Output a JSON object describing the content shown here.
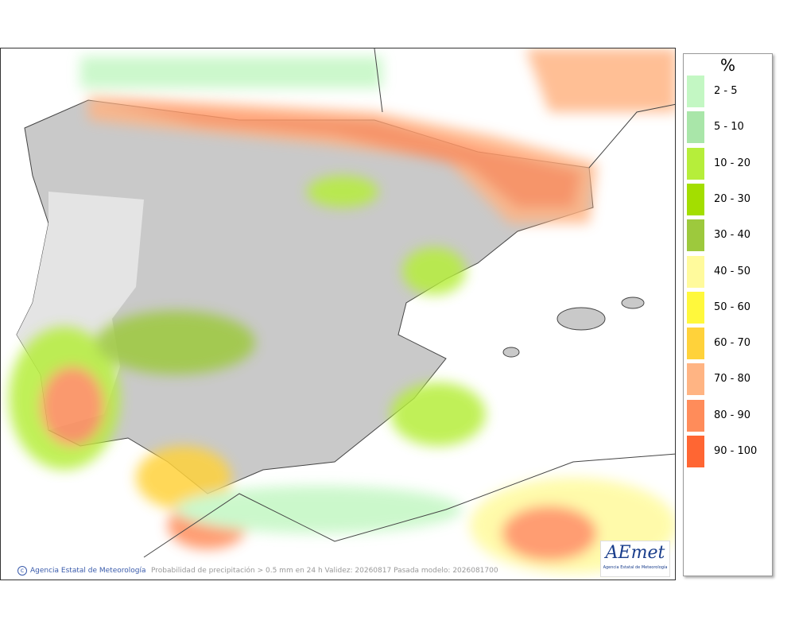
{
  "legend": {
    "title": "%",
    "items": [
      {
        "label": "2 - 5",
        "color": "#c3f7c3"
      },
      {
        "label": "5 - 10",
        "color": "#a9e6a9"
      },
      {
        "label": "10 - 20",
        "color": "#b6ee3a"
      },
      {
        "label": "20 - 30",
        "color": "#a3de00"
      },
      {
        "label": "30 - 40",
        "color": "#9dc93d"
      },
      {
        "label": "40 - 50",
        "color": "#fffa9c"
      },
      {
        "label": "50 - 60",
        "color": "#fff83c"
      },
      {
        "label": "60 - 70",
        "color": "#ffd23a"
      },
      {
        "label": "70 - 80",
        "color": "#ffb483"
      },
      {
        "label": "80 - 90",
        "color": "#ff8c5a"
      },
      {
        "label": "90 - 100",
        "color": "#ff6633"
      }
    ]
  },
  "footer": {
    "credit": "Agencia Estatal de Meteorología",
    "caption": "Probabilidad de precipitación > 0.5 mm en 24 h Validez: 20260817 Pasada modelo: 2026081700"
  },
  "logo": {
    "name": "AEmet",
    "subtitle": "Agencia Estatal de Meteorología"
  }
}
